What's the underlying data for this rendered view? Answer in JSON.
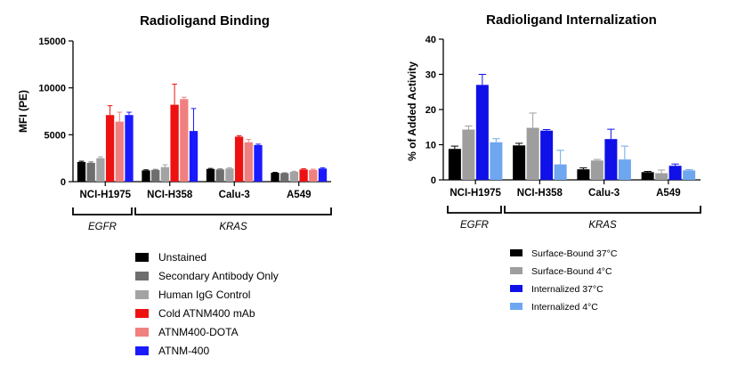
{
  "chart_data": [
    {
      "type": "bar",
      "title": "Radioligand Binding",
      "xlabel": "",
      "ylabel": "MFI (PE)",
      "ylim": [
        0,
        15000
      ],
      "yticks": [
        0,
        5000,
        10000,
        15000
      ],
      "categories": [
        "NCI-H1975",
        "NCI-H358",
        "Calu-3",
        "A549"
      ],
      "groups": [
        {
          "label": "EGFR",
          "categories": [
            "NCI-H1975"
          ]
        },
        {
          "label": "KRAS",
          "categories": [
            "NCI-H358",
            "Calu-3",
            "A549"
          ]
        }
      ],
      "legend_position": "below",
      "series": [
        {
          "name": "Unstained",
          "color": "#000000",
          "values": [
            2100,
            1200,
            1350,
            950
          ],
          "errors": [
            80,
            60,
            60,
            40
          ]
        },
        {
          "name": "Secondary Antibody Only",
          "color": "#6e6e6e",
          "values": [
            2000,
            1250,
            1300,
            900
          ],
          "errors": [
            100,
            60,
            60,
            40
          ]
        },
        {
          "name": "Human IgG Control",
          "color": "#a3a3a3",
          "values": [
            2500,
            1550,
            1400,
            1050
          ],
          "errors": [
            150,
            250,
            80,
            60
          ]
        },
        {
          "name": "Cold ATNM400 mAb",
          "color": "#ee1111",
          "values": [
            7100,
            8200,
            4800,
            1300
          ],
          "errors": [
            1000,
            2200,
            100,
            80
          ]
        },
        {
          "name": "ATNM400-DOTA",
          "color": "#f08080",
          "values": [
            6400,
            8800,
            4200,
            1250
          ],
          "errors": [
            1000,
            200,
            300,
            80
          ]
        },
        {
          "name": "ATNM-400",
          "color": "#1a1aff",
          "values": [
            7100,
            5400,
            3900,
            1400
          ],
          "errors": [
            300,
            2400,
            100,
            80
          ]
        }
      ]
    },
    {
      "type": "bar",
      "title": "Radioligand Internalization",
      "xlabel": "",
      "ylabel": "% of Added Activity",
      "ylim": [
        0,
        40
      ],
      "yticks": [
        0,
        10,
        20,
        30,
        40
      ],
      "categories": [
        "NCI-H1975",
        "NCI-H358",
        "Calu-3",
        "A549"
      ],
      "groups": [
        {
          "label": "EGFR",
          "categories": [
            "NCI-H1975"
          ]
        },
        {
          "label": "KRAS",
          "categories": [
            "NCI-H358",
            "Calu-3",
            "A549"
          ]
        }
      ],
      "legend_position": "below",
      "series": [
        {
          "name": "Surface-Bound 37°C",
          "color": "#000000",
          "values": [
            8.8,
            9.8,
            3.0,
            2.2
          ],
          "errors": [
            0.8,
            0.6,
            0.4,
            0.2
          ]
        },
        {
          "name": "Surface-Bound 4°C",
          "color": "#9e9e9e",
          "values": [
            14.3,
            14.8,
            5.5,
            1.9
          ],
          "errors": [
            1.0,
            4.2,
            0.3,
            0.9
          ]
        },
        {
          "name": "Internalized 37°C",
          "color": "#1010e8",
          "values": [
            27.0,
            14.0,
            11.6,
            4.0
          ],
          "errors": [
            3.0,
            0.3,
            2.8,
            0.5
          ]
        },
        {
          "name": "Internalized 4°C",
          "color": "#6ea6f0",
          "values": [
            10.7,
            4.4,
            5.8,
            2.7
          ],
          "errors": [
            1.0,
            4.0,
            3.8,
            0.2
          ]
        }
      ]
    }
  ]
}
